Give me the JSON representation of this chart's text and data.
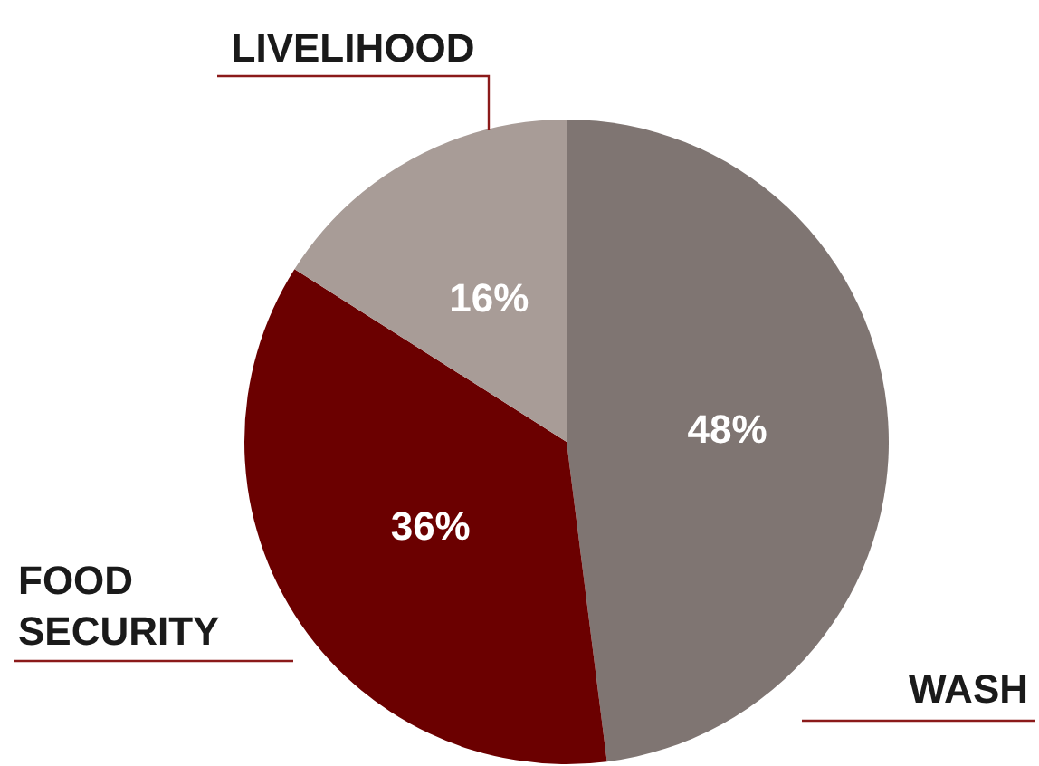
{
  "chart_data": {
    "type": "pie",
    "categories": [
      "WASH",
      "FOOD SECURITY",
      "LIVELIHOOD"
    ],
    "values": [
      48,
      36,
      16
    ],
    "colors": [
      "#7f7572",
      "#6b0000",
      "#a89c97"
    ],
    "value_labels": [
      "48%",
      "36%",
      "16%"
    ],
    "legend": false
  }
}
